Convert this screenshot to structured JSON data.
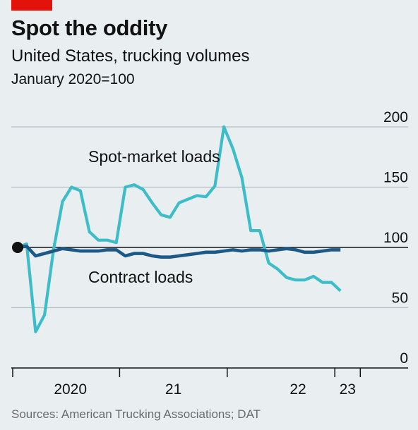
{
  "header": {
    "title": "Spot the oddity",
    "subtitle": "United States, trucking volumes",
    "unit": "January 2020=100"
  },
  "footer": {
    "source": "Sources: American Trucking Associations; DAT"
  },
  "colors": {
    "accent_red": "#e3120b",
    "spot_market": "#3cbdc9",
    "contract": "#1d5986",
    "gridline": "#b5c0c4",
    "baseline": "#121212"
  },
  "chart_data": {
    "type": "line",
    "title": "Spot the oddity",
    "subtitle": "United States, trucking volumes",
    "ylabel": "January 2020=100",
    "ylim": [
      0,
      200
    ],
    "yticks": [
      0,
      50,
      100,
      150,
      200
    ],
    "ytick_labels": [
      "0",
      "50",
      "100",
      "150",
      "200"
    ],
    "x_ticks": [
      "2020-01",
      "2021-01",
      "2022-01",
      "2023-01"
    ],
    "x_tick_labels": [
      "2020",
      "21",
      "22",
      "23"
    ],
    "xlim": [
      "2020-01",
      "2023-04"
    ],
    "grid": true,
    "series": [
      {
        "name": "Spot-market loads",
        "x": [
          "2020-01",
          "2020-02",
          "2020-03",
          "2020-04",
          "2020-05",
          "2020-06",
          "2020-07",
          "2020-08",
          "2020-09",
          "2020-10",
          "2020-11",
          "2020-12",
          "2021-01",
          "2021-02",
          "2021-03",
          "2021-04",
          "2021-05",
          "2021-06",
          "2021-07",
          "2021-08",
          "2021-09",
          "2021-10",
          "2021-11",
          "2021-12",
          "2022-01",
          "2022-02",
          "2022-03",
          "2022-04",
          "2022-05",
          "2022-06",
          "2022-07",
          "2022-08",
          "2022-09",
          "2022-10",
          "2022-11",
          "2022-12",
          "2023-01",
          "2023-02",
          "2023-03"
        ],
        "values": [
          100,
          103,
          30,
          44,
          98,
          138,
          150,
          147,
          113,
          106,
          106,
          104,
          150,
          152,
          148,
          137,
          127,
          125,
          137,
          140,
          143,
          142,
          151,
          200,
          182,
          158,
          114,
          114,
          87,
          82,
          75,
          73,
          73,
          76,
          71,
          71,
          64,
          null,
          null
        ]
      },
      {
        "name": "Contract loads",
        "x": [
          "2020-01",
          "2020-02",
          "2020-03",
          "2020-04",
          "2020-05",
          "2020-06",
          "2020-07",
          "2020-08",
          "2020-09",
          "2020-10",
          "2020-11",
          "2020-12",
          "2021-01",
          "2021-02",
          "2021-03",
          "2021-04",
          "2021-05",
          "2021-06",
          "2021-07",
          "2021-08",
          "2021-09",
          "2021-10",
          "2021-11",
          "2021-12",
          "2022-01",
          "2022-02",
          "2022-03",
          "2022-04",
          "2022-05",
          "2022-06",
          "2022-07",
          "2022-08",
          "2022-09",
          "2022-10",
          "2022-11",
          "2022-12",
          "2023-01",
          "2023-02",
          "2023-03"
        ],
        "values": [
          100,
          101,
          93,
          95,
          97,
          99,
          98,
          97,
          97,
          97,
          98,
          98,
          93,
          95,
          95,
          93,
          92,
          92,
          93,
          94,
          95,
          96,
          96,
          97,
          98,
          97,
          98,
          98,
          97,
          98,
          99,
          98,
          96,
          96,
          97,
          98,
          98,
          null,
          null
        ]
      }
    ],
    "annotations": [
      {
        "text": "Spot-market loads",
        "series": "Spot-market loads"
      },
      {
        "text": "Contract loads",
        "series": "Contract loads"
      }
    ]
  }
}
